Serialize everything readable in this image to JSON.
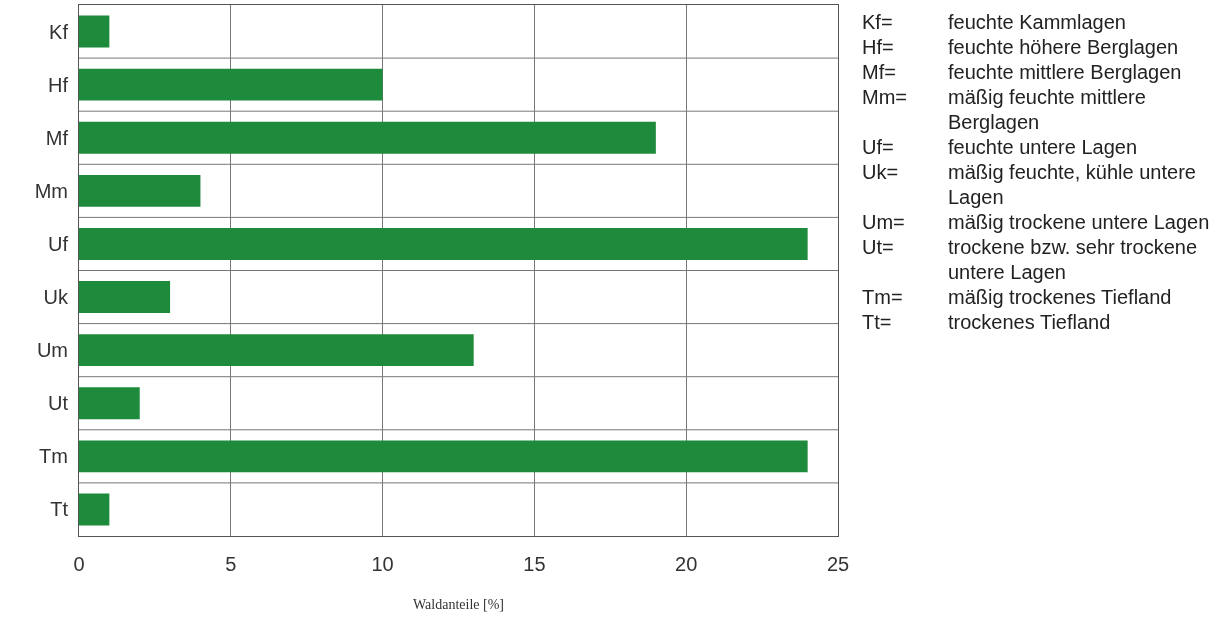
{
  "chart_data": {
    "type": "bar",
    "orientation": "horizontal",
    "categories": [
      "Kf",
      "Hf",
      "Mf",
      "Mm",
      "Uf",
      "Uk",
      "Um",
      "Ut",
      "Tm",
      "Tt"
    ],
    "values": [
      1,
      10,
      19,
      4,
      24,
      3,
      13,
      2,
      24,
      1
    ],
    "color": "#1e8a3c",
    "xlim": [
      0,
      25
    ],
    "xticks": [
      0,
      5,
      10,
      15,
      20,
      25
    ],
    "xlabel": "Waldanteile [%]",
    "grid": true,
    "annotations": [
      "Kf= feuchte Kammlagen",
      "Hf= feuchte höhere Berglagen",
      "Mf= feuchte mittlere Berglagen",
      "Mm= mäßig feuchte mittlere Berglagen",
      "Uf= feuchte untere Lagen",
      "Uk= mäßig feuchte, kühle untere Lagen",
      "Um= mäßig trockene untere Lagen",
      "Ut= trockene bzw. sehr trockene untere Lagen",
      "Tm= mäßig trockenes Tiefland",
      "Tt= trockenes Tiefland"
    ]
  }
}
